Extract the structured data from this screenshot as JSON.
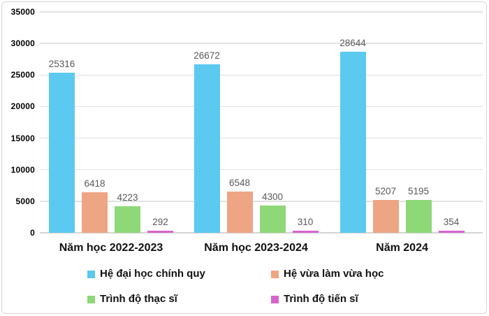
{
  "chart_data": {
    "type": "bar",
    "title": "",
    "categories": [
      "Năm học 2022-2023",
      "Năm học 2023-2024",
      "Năm 2024"
    ],
    "series": [
      {
        "name": "Hệ đại học chính quy",
        "color": "#5bc9f0",
        "values": [
          25316,
          26672,
          28644
        ]
      },
      {
        "name": "Hệ vừa làm vừa học",
        "color": "#eda583",
        "values": [
          6418,
          6548,
          5207
        ]
      },
      {
        "name": "Trình độ thạc sĩ",
        "color": "#8ed878",
        "values": [
          4223,
          4300,
          5195
        ]
      },
      {
        "name": "Trình độ tiến sĩ",
        "color": "#d765ce",
        "values": [
          292,
          310,
          354
        ]
      }
    ],
    "ylim": [
      0,
      35000
    ],
    "ytick_step": 5000,
    "yticks": [
      0,
      5000,
      10000,
      15000,
      20000,
      25000,
      30000,
      35000
    ],
    "grid": true,
    "data_labels": true,
    "legend_position": "bottom"
  },
  "colors": {
    "background": "#ffffff",
    "frame_border": "#d6d6d6",
    "gridline": "#e2e2e2",
    "value_label": "#595959",
    "axis_text": "#000000",
    "legend_text": "#111111"
  }
}
